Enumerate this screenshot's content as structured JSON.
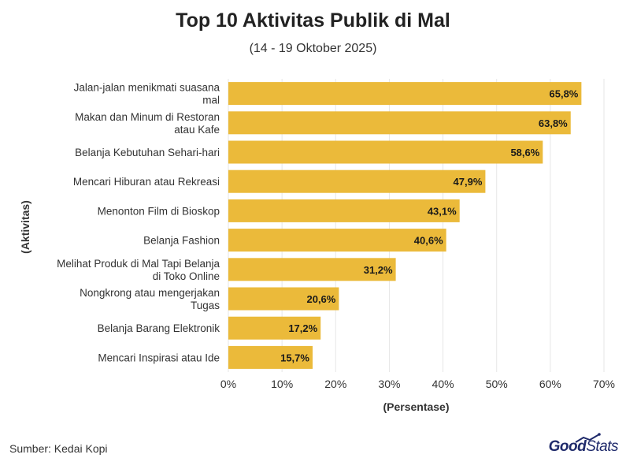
{
  "header": {
    "title": "Top 10 Aktivitas Publik di Mal",
    "subtitle": "(14 - 19 Oktober 2025)"
  },
  "footer": {
    "source": "Sumber: Kedai Kopi",
    "logo_good": "Good",
    "logo_stats": "Stats"
  },
  "colors": {
    "bar": "#ebba3a",
    "grid": "#e6e6e6",
    "text": "#333333",
    "logo": "#1f2a6b"
  },
  "chart_data": {
    "type": "bar",
    "orientation": "horizontal",
    "title": "Top 10 Aktivitas Publik di Mal",
    "subtitle": "(14 - 19 Oktober 2025)",
    "xlabel": "(Persentase)",
    "ylabel": "(Aktivitas)",
    "xlim": [
      0,
      70
    ],
    "xticks": [
      0,
      10,
      20,
      30,
      40,
      50,
      60,
      70
    ],
    "xtick_labels": [
      "0%",
      "10%",
      "20%",
      "30%",
      "40%",
      "50%",
      "60%",
      "70%"
    ],
    "grid": true,
    "categories": [
      [
        "Jalan-jalan menikmati suasana",
        "mal"
      ],
      [
        "Makan dan Minum di Restoran",
        "atau Kafe"
      ],
      [
        "Belanja Kebutuhan Sehari-hari"
      ],
      [
        "Mencari Hiburan atau Rekreasi"
      ],
      [
        "Menonton Film di Bioskop"
      ],
      [
        "Belanja Fashion"
      ],
      [
        "Melihat Produk di Mal Tapi Belanja",
        "di Toko Online"
      ],
      [
        "Nongkrong atau mengerjakan",
        "Tugas"
      ],
      [
        "Belanja Barang Elektronik"
      ],
      [
        "Mencari Inspirasi atau Ide"
      ]
    ],
    "values": [
      65.8,
      63.8,
      58.6,
      47.9,
      43.1,
      40.6,
      31.2,
      20.6,
      17.2,
      15.7
    ],
    "value_labels": [
      "65,8%",
      "63,8%",
      "58,6%",
      "47,9%",
      "43,1%",
      "40,6%",
      "31,2%",
      "20,6%",
      "17,2%",
      "15,7%"
    ]
  }
}
